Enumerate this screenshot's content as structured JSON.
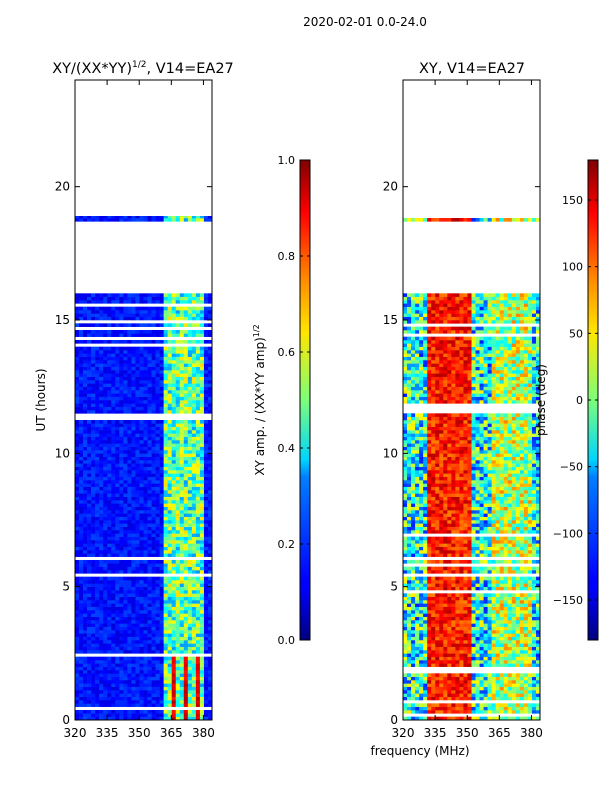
{
  "chart_data": {
    "suptitle": "2020-02-01 0.0-24.0",
    "xlabel": "frequency (MHz)",
    "charts": [
      {
        "type": "heatmap",
        "title_main": "XY/(XX*YY)",
        "title_sup": "1/2",
        "title_tail": ", V14=EA27",
        "ylabel": "UT (hours)",
        "xlim": [
          320,
          384
        ],
        "ylim": [
          0,
          24
        ],
        "xticks": [
          "320",
          "335",
          "350",
          "365",
          "380"
        ],
        "xtick_values": [
          320,
          335,
          350,
          365,
          380
        ],
        "yticks": [
          "0",
          "5",
          "10",
          "15",
          "20"
        ],
        "ytick_values": [
          0,
          5,
          10,
          15,
          20
        ],
        "colorbar": {
          "label_main": "XY amp. / (XX*YY amp)",
          "label_sup": "1/2",
          "range": [
            0.0,
            1.0
          ],
          "ticks": [
            "0.0",
            "0.2",
            "0.4",
            "0.6",
            "0.8",
            "1.0"
          ],
          "tick_values": [
            0.0,
            0.2,
            0.4,
            0.6,
            0.8,
            1.0
          ]
        },
        "data_coverage_hours": [
          [
            0,
            16.0
          ],
          [
            18.7,
            18.9
          ]
        ],
        "rfi_band_mhz": [
          361,
          381
        ],
        "background_level": 0.15,
        "rfi_level": 0.55
      },
      {
        "type": "heatmap",
        "title_main": "XY, V14=EA27",
        "ylabel": "",
        "xlim": [
          320,
          384
        ],
        "ylim": [
          0,
          24
        ],
        "xticks": [
          "320",
          "335",
          "350",
          "365",
          "380"
        ],
        "xtick_values": [
          320,
          335,
          350,
          365,
          380
        ],
        "yticks": [
          "0",
          "5",
          "10",
          "15",
          "20"
        ],
        "ytick_values": [
          0,
          5,
          10,
          15,
          20
        ],
        "colorbar": {
          "label_main": "phase (deg)",
          "range": [
            -180,
            180
          ],
          "ticks": [
            "−150",
            "−100",
            "−50",
            "0",
            "50",
            "100",
            "150"
          ],
          "tick_values": [
            -150,
            -100,
            -50,
            0,
            50,
            100,
            150
          ]
        },
        "data_coverage_hours": [
          [
            0,
            16.0
          ],
          [
            18.7,
            18.9
          ]
        ],
        "rfi_band_mhz": [
          361,
          381
        ]
      }
    ]
  }
}
